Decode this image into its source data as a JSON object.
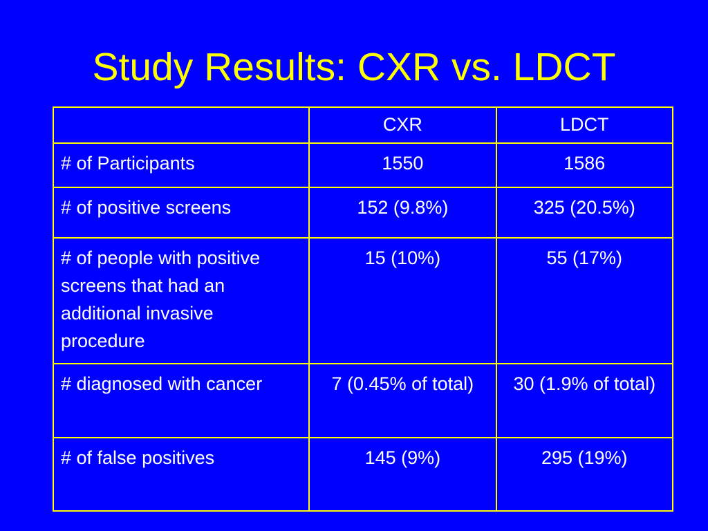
{
  "slide": {
    "title": "Study Results: CXR vs. LDCT"
  },
  "table": {
    "headers": [
      "",
      "CXR",
      "LDCT"
    ],
    "rows": [
      {
        "label": "# of Participants",
        "cxr": "1550",
        "ldct": "1586"
      },
      {
        "label": "# of positive screens",
        "cxr": "152 (9.8%)",
        "ldct": "325 (20.5%)"
      },
      {
        "label": "# of people with positive screens that had an additional invasive procedure",
        "cxr": "15 (10%)",
        "ldct": "55 (17%)"
      },
      {
        "label": "# diagnosed with cancer",
        "cxr": "7 (0.45% of total)",
        "ldct": "30 (1.9% of total)"
      },
      {
        "label": "# of false positives",
        "cxr": "145 (9%)",
        "ldct": "295 (19%)"
      }
    ]
  },
  "colors": {
    "background": "#0000ff",
    "title": "#ffff00",
    "border": "#ffff00",
    "text": "#ffffff"
  }
}
